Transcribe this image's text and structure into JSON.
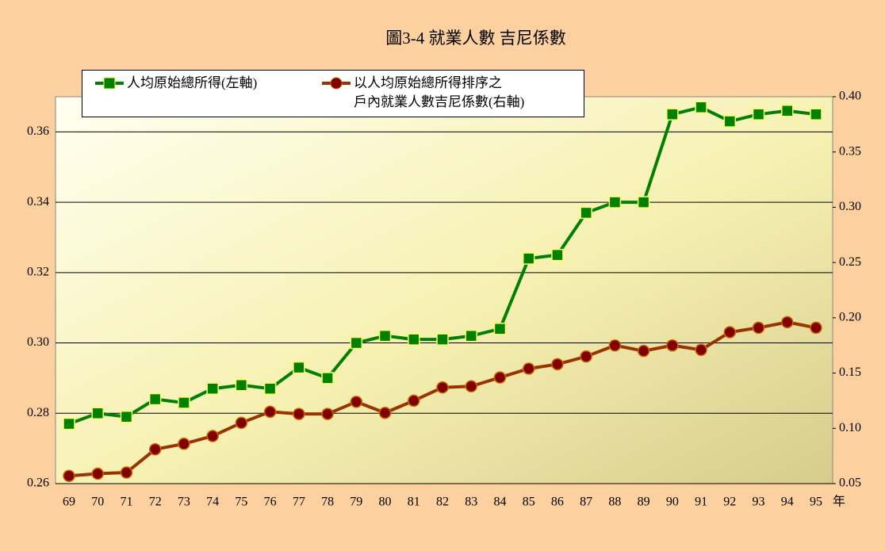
{
  "chart_data": {
    "type": "line",
    "title": "圖3-4 就業人數 吉尼係數",
    "x_unit": "年",
    "categories": [
      "69",
      "70",
      "71",
      "72",
      "73",
      "74",
      "75",
      "76",
      "77",
      "78",
      "79",
      "80",
      "81",
      "82",
      "83",
      "84",
      "85",
      "86",
      "87",
      "88",
      "89",
      "90",
      "91",
      "92",
      "93",
      "94",
      "95"
    ],
    "series": [
      {
        "name": "人均原始總所得(左軸)",
        "color": "#008000",
        "marker": "square",
        "values": [
          0.277,
          0.28,
          0.279,
          0.284,
          0.283,
          0.287,
          0.288,
          0.287,
          0.293,
          0.29,
          0.3,
          0.302,
          0.301,
          0.301,
          0.302,
          0.304,
          0.324,
          0.325,
          0.337,
          0.34,
          0.34,
          0.365,
          0.367,
          0.363,
          0.365,
          0.366,
          0.365
        ]
      },
      {
        "name": "以人均原始總所得排序之\n戶內就業人數吉尼係數(右軸)",
        "color": "#993300",
        "marker": "circle",
        "axis": "y2",
        "values": [
          0.057,
          0.059,
          0.06,
          0.081,
          0.086,
          0.093,
          0.105,
          0.115,
          0.113,
          0.113,
          0.124,
          0.114,
          0.125,
          0.137,
          0.138,
          0.146,
          0.154,
          0.158,
          0.165,
          0.175,
          0.17,
          0.175,
          0.171,
          0.187,
          0.191,
          0.196,
          0.191
        ]
      }
    ],
    "ylim": [
      0.26,
      0.37
    ],
    "yticks": [
      0.26,
      0.28,
      {
        "value": 0.3,
        "label": "0.30"
      },
      0.32,
      0.34,
      0.36
    ],
    "y2lim": [
      0.05,
      0.4
    ],
    "y2ticks": [
      0.05,
      {
        "value": 0.1,
        "label": "0.10"
      },
      0.15,
      {
        "value": 0.2,
        "label": "0.20"
      },
      0.25,
      {
        "value": 0.3,
        "label": "0.30"
      },
      0.35,
      {
        "value": 0.4,
        "label": "0.40"
      }
    ],
    "grid": true
  }
}
